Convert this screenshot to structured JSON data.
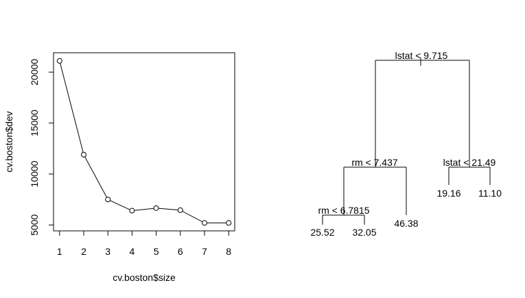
{
  "chart_data": [
    {
      "type": "line",
      "xlabel": "cv.boston$size",
      "ylabel": "cv.boston$dev",
      "x": [
        1,
        2,
        3,
        4,
        5,
        6,
        7,
        8
      ],
      "series": [
        {
          "values": [
            21100,
            11900,
            7500,
            6400,
            6650,
            6450,
            5200,
            5200
          ]
        }
      ],
      "xlim": [
        0.75,
        8.25
      ],
      "ylim": [
        4420,
        21900
      ],
      "xticks": [
        "1",
        "2",
        "3",
        "4",
        "5",
        "6",
        "7",
        "8"
      ],
      "yticks": [
        "5000",
        "10000",
        "15000",
        "20000"
      ],
      "grid": false
    },
    {
      "type": "diagram",
      "splits": {
        "root": "lstat < 9.715",
        "left": "rm < 7.437",
        "right": "lstat < 21.49",
        "left_left": "rm < 6.7815"
      },
      "leaves": {
        "ll_l": "25.52",
        "ll_r": "32.05",
        "l_r": "46.38",
        "r_l": "19.16",
        "r_r": "11.10"
      }
    }
  ]
}
